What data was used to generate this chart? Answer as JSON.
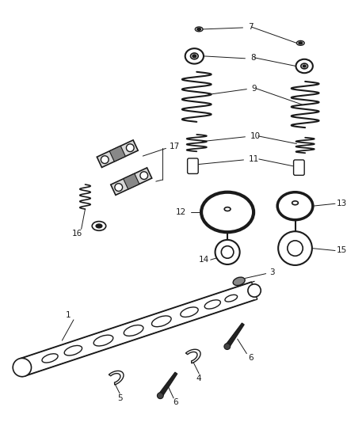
{
  "bg_color": "#ffffff",
  "line_color": "#1a1a1a",
  "text_color": "#1a1a1a",
  "fig_width": 4.38,
  "fig_height": 5.33,
  "dpi": 100
}
